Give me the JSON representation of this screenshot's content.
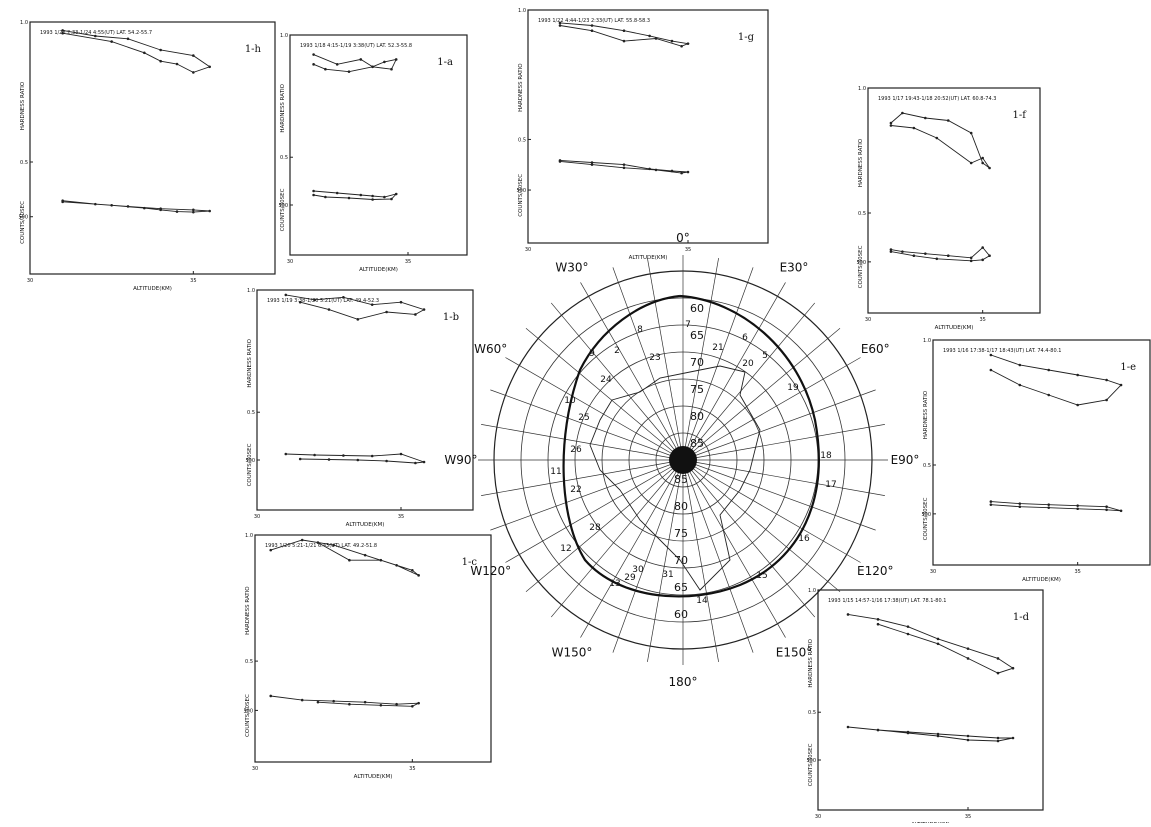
{
  "chart_data": [
    {
      "type": "line",
      "label": "1-h",
      "header": "1993 1/23 2:33-1/24 4:55(UT) LAT. 54.2-55.7",
      "x_label": "ALTITUDE(KM)",
      "y_label": "HARDNESS RATIO",
      "y2_label": "COUNTS/30SEC",
      "xlim": [
        30,
        37.5
      ],
      "xticks": [
        30,
        35
      ],
      "ylim": [
        0.1,
        1.0
      ],
      "yticks": [
        {
          "value": 1,
          "label": "1.0"
        },
        0.5
      ],
      "y2lim": [
        0,
        2200
      ],
      "y2ticks": [
        500
      ],
      "x": [
        31,
        32,
        33,
        34,
        35,
        35.5,
        35,
        34.5,
        34,
        33.5,
        32.5,
        31
      ],
      "series": [
        {
          "color": "#222",
          "values": [
            0.97,
            0.95,
            0.94,
            0.9,
            0.88,
            0.84,
            0.82,
            0.85,
            0.86,
            0.89,
            0.93,
            0.96
          ]
        },
        {
          "color": "#222",
          "axis": "y2",
          "values": [
            640,
            610,
            590,
            570,
            560,
            550,
            540,
            545,
            560,
            575,
            600,
            630
          ]
        }
      ]
    },
    {
      "type": "line",
      "label": "1-a",
      "header": "1993 1/18 4:15-1/19 3:38(UT) LAT. 52.3-55.8",
      "x_label": "ALTITUDE(KM)",
      "y_label": "HARDNESS RATIO",
      "y2_label": "COUNTS/30SEC",
      "xlim": [
        30,
        37.5
      ],
      "xticks": [
        30,
        35
      ],
      "ylim": [
        0.1,
        1.0
      ],
      "yticks": [
        {
          "value": 1,
          "label": "1.0"
        },
        0.5
      ],
      "y2lim": [
        0,
        2200
      ],
      "y2ticks": [
        500
      ],
      "x": [
        31,
        32,
        33,
        33.5,
        34,
        34.5,
        34.3,
        33.5,
        32.5,
        31.5,
        31
      ],
      "series": [
        {
          "color": "#222",
          "values": [
            0.92,
            0.88,
            0.9,
            0.87,
            0.89,
            0.9,
            0.86,
            0.87,
            0.85,
            0.86,
            0.88
          ]
        },
        {
          "color": "#222",
          "axis": "y2",
          "values": [
            640,
            620,
            600,
            590,
            580,
            610,
            560,
            555,
            570,
            580,
            600
          ]
        }
      ]
    },
    {
      "type": "line",
      "label": "1-g",
      "header": "1993 1/22 4:44-1/23 2:33(UT) LAT. 55.8-58.3",
      "x_label": "ALTITUDE(KM)",
      "y_label": "HARDNESS RATIO",
      "y2_label": "COUNTS/30SEC",
      "xlim": [
        30,
        37.5
      ],
      "xticks": [
        30,
        35
      ],
      "ylim": [
        0.1,
        1.0
      ],
      "yticks": [
        {
          "value": 1,
          "label": "1.0"
        },
        0.5
      ],
      "y2lim": [
        0,
        2200
      ],
      "y2ticks": [
        500
      ],
      "x": [
        31,
        32,
        33,
        33.8,
        34.5,
        35,
        34.8,
        34,
        33,
        32,
        31
      ],
      "series": [
        {
          "color": "#222",
          "values": [
            0.95,
            0.94,
            0.92,
            0.9,
            0.88,
            0.87,
            0.86,
            0.89,
            0.88,
            0.92,
            0.94
          ]
        },
        {
          "color": "#222",
          "axis": "y2",
          "values": [
            780,
            760,
            740,
            700,
            680,
            670,
            660,
            690,
            710,
            740,
            770
          ]
        }
      ]
    },
    {
      "type": "line",
      "label": "1-f",
      "header": "1993 1/17 19:43-1/18 20:52(UT) LAT. 60.8-74.3",
      "x_label": "ALTITUDE(KM)",
      "y_label": "HARDNESS RATIO",
      "y2_label": "COUNTS/30SEC",
      "xlim": [
        30,
        37.5
      ],
      "xticks": [
        30,
        35
      ],
      "ylim": [
        0.1,
        1.0
      ],
      "yticks": [
        {
          "value": 1,
          "label": "1.0"
        },
        0.5
      ],
      "y2lim": [
        0,
        2200
      ],
      "y2ticks": [
        500
      ],
      "x": [
        31,
        31.5,
        32.5,
        33.5,
        34.5,
        35,
        35.3,
        35,
        34.5,
        33,
        32,
        31
      ],
      "series": [
        {
          "color": "#222",
          "values": [
            0.86,
            0.9,
            0.88,
            0.87,
            0.82,
            0.7,
            0.68,
            0.72,
            0.7,
            0.8,
            0.84,
            0.85
          ]
        },
        {
          "color": "#222",
          "axis": "y2",
          "values": [
            620,
            600,
            580,
            560,
            540,
            640,
            560,
            520,
            510,
            530,
            560,
            600
          ]
        }
      ]
    },
    {
      "type": "line",
      "label": "1-b",
      "header": "1993 1/19 3:38-1/20 5:21(UT) LAT. 49.4-52.3",
      "x_label": "ALTITUDE(KM)",
      "y_label": "HARDNESS RATIO",
      "y2_label": "COUNTS/30SEC",
      "xlim": [
        30,
        37.5
      ],
      "xticks": [
        30,
        35
      ],
      "ylim": [
        0.1,
        1.0
      ],
      "yticks": [
        {
          "value": 1,
          "label": "1.0"
        },
        0.5
      ],
      "y2lim": [
        0,
        2200
      ],
      "y2ticks": [
        500
      ],
      "x": [
        31,
        32,
        33,
        34,
        35,
        35.8,
        35.5,
        34.5,
        33.5,
        32.5,
        31.5
      ],
      "series": [
        {
          "color": "#222",
          "values": [
            0.98,
            0.96,
            0.97,
            0.94,
            0.95,
            0.92,
            0.9,
            0.91,
            0.88,
            0.92,
            0.95
          ]
        },
        {
          "color": "#222",
          "axis": "y2",
          "values": [
            560,
            550,
            545,
            540,
            560,
            480,
            470,
            490,
            500,
            505,
            510
          ]
        }
      ]
    },
    {
      "type": "line",
      "label": "1-e",
      "header": "1993 1/16 17:38-1/17 18:43(UT) LAT. 74.4-80.1",
      "x_label": "ALTITUDE(KM)",
      "y_label": "HARDNESS RATIO",
      "y2_label": "COUNTS/30SEC",
      "xlim": [
        30,
        37.5
      ],
      "xticks": [
        30,
        35
      ],
      "ylim": [
        0.1,
        1.0
      ],
      "yticks": [
        {
          "value": 1,
          "label": "1.0"
        },
        0.5
      ],
      "y2lim": [
        0,
        2200
      ],
      "y2ticks": [
        500
      ],
      "x": [
        32,
        33,
        34,
        35,
        36,
        36.5,
        36,
        35,
        34,
        33,
        32
      ],
      "series": [
        {
          "color": "#222",
          "values": [
            0.94,
            0.9,
            0.88,
            0.86,
            0.84,
            0.82,
            0.76,
            0.74,
            0.78,
            0.82,
            0.88
          ]
        },
        {
          "color": "#222",
          "axis": "y2",
          "values": [
            620,
            600,
            590,
            580,
            570,
            530,
            540,
            550,
            560,
            570,
            590
          ]
        }
      ]
    },
    {
      "type": "line",
      "label": "1-c",
      "header": "1993 1/20 5:21-1/21 6:43(UT) LAT. 49.2-51.8",
      "x_label": "ALTITUDE(KM)",
      "y_label": "HARDNESS RATIO",
      "y2_label": "COUNTS/30SEC",
      "xlim": [
        30,
        37.5
      ],
      "xticks": [
        30,
        35
      ],
      "ylim": [
        0.1,
        1.0
      ],
      "yticks": [
        {
          "value": 1,
          "label": "1.0"
        },
        0.5
      ],
      "y2lim": [
        0,
        2200
      ],
      "y2ticks": [
        500
      ],
      "x": [
        30.5,
        31.5,
        32.5,
        33.5,
        34.5,
        35.2,
        35,
        34,
        33,
        32
      ],
      "series": [
        {
          "color": "#222",
          "values": [
            0.94,
            0.98,
            0.96,
            0.92,
            0.88,
            0.84,
            0.86,
            0.9,
            0.9,
            0.97
          ]
        },
        {
          "color": "#222",
          "axis": "y2",
          "values": [
            640,
            600,
            590,
            580,
            560,
            570,
            540,
            550,
            560,
            580
          ]
        }
      ]
    },
    {
      "type": "line",
      "label": "1-d",
      "header": "1993 1/15 14:57-1/16 17:38(UT) LAT. 78.1-80.1",
      "x_label": "ALTITUDE(KM)",
      "y_label": "HARDNESS RATIO",
      "y2_label": "COUNTS/30SEC",
      "xlim": [
        30,
        37.5
      ],
      "xticks": [
        30,
        35
      ],
      "ylim": [
        0.1,
        1.0
      ],
      "yticks": [
        {
          "value": 1,
          "label": "1.0"
        },
        0.5
      ],
      "y2lim": [
        0,
        2200
      ],
      "y2ticks": [
        500
      ],
      "x": [
        31,
        32,
        33,
        34,
        35,
        36,
        36.5,
        36,
        35,
        34,
        33,
        32
      ],
      "series": [
        {
          "color": "#222",
          "values": [
            0.9,
            0.88,
            0.85,
            0.8,
            0.76,
            0.72,
            0.68,
            0.66,
            0.72,
            0.78,
            0.82,
            0.86
          ]
        },
        {
          "color": "#222",
          "axis": "y2",
          "values": [
            830,
            800,
            780,
            760,
            740,
            720,
            720,
            690,
            700,
            740,
            770,
            800
          ]
        }
      ]
    }
  ],
  "map": {
    "longitudes": [
      {
        "value": 0,
        "label": "0°"
      },
      {
        "value": 30,
        "label": "E30°"
      },
      {
        "value": 60,
        "label": "E60°"
      },
      {
        "value": 90,
        "label": "E90°"
      },
      {
        "value": 120,
        "label": "E120°"
      },
      {
        "value": 150,
        "label": "E150°"
      },
      {
        "value": 180,
        "label": "180°"
      },
      {
        "value": -150,
        "label": "W150°"
      },
      {
        "value": -120,
        "label": "W120°"
      },
      {
        "value": -90,
        "label": "W90°"
      },
      {
        "value": -60,
        "label": "W60°"
      },
      {
        "value": -30,
        "label": "W30°"
      }
    ],
    "latitudes": [
      60,
      65,
      70,
      75,
      80,
      85
    ],
    "track_labels": [
      "2",
      "5",
      "6",
      "7",
      "8",
      "9",
      "10",
      "11",
      "12",
      "13",
      "14",
      "15",
      "16",
      "17",
      "18",
      "19",
      "20",
      "21",
      "22",
      "23",
      "24",
      "25",
      "26",
      "28",
      "29",
      "30",
      "31"
    ]
  }
}
